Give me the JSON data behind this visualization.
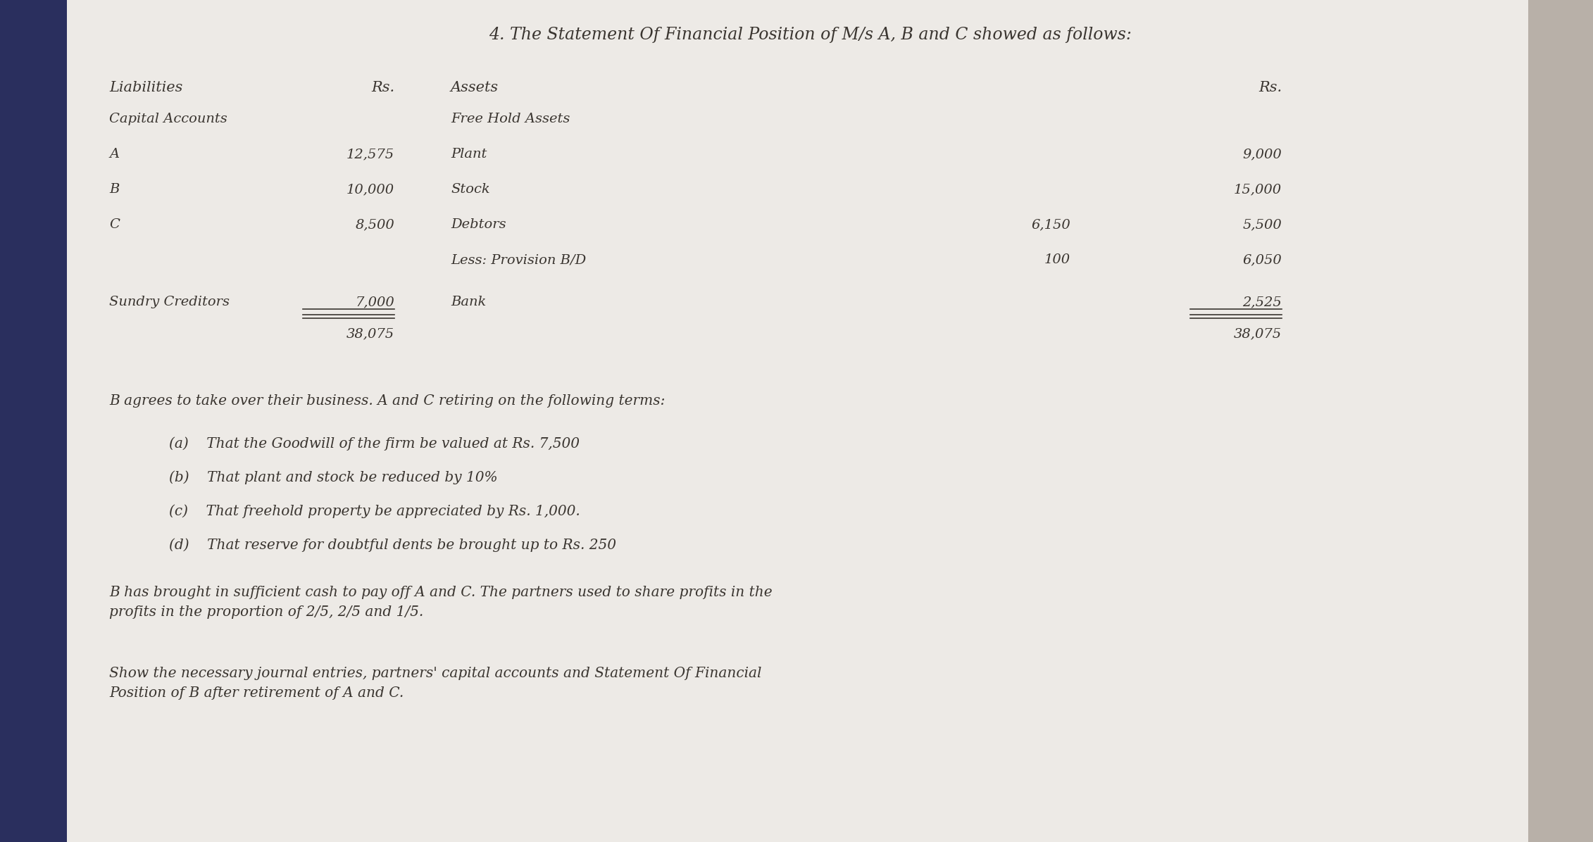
{
  "title": "4. The Statement Of Financial Position of M/s A, B and C showed as follows:",
  "bg_color": "#e8e4e0",
  "paper_color": "#edeae6",
  "left_panel_color": "#2a2f5e",
  "text_color": "#3a3530",
  "header_left": "Liabilities",
  "header_rs_left": "Rs.",
  "header_right": "Assets",
  "header_rs_right": "Rs.",
  "paragraph1": "B agrees to take over their business. A and C retiring on the following terms:",
  "points": [
    "(a)    That the Goodwill of the firm be valued at Rs. 7,500",
    "(b)    That plant and stock be reduced by 10%",
    "(c)    That freehold property be appreciated by Rs. 1,000.",
    "(d)    That reserve for doubtful dents be brought up to Rs. 250"
  ],
  "paragraph2": "B has brought in sufficient cash to pay off A and C. The partners used to share profits in the\nprofits in the proportion of 2/5, 2/5 and 1/5.",
  "paragraph3": "Show the necessary journal entries, partners' capital accounts and Statement Of Financial\nPosition of B after retirement of A and C."
}
